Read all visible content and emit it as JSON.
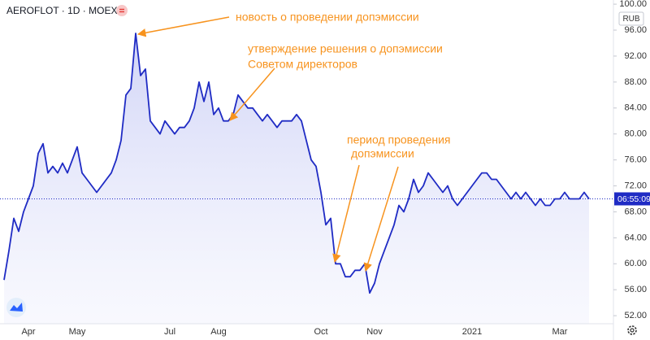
{
  "chart_data": {
    "type": "line",
    "title": "AEROFLOT · 1D · MOEX",
    "currency": "RUB",
    "last_label": "06:55:09",
    "annotations": [
      "новость о проведении допэмиссии",
      "утверждение решения о допэмиссии",
      "Советом директоров",
      "период проведения",
      "допэмиссии"
    ],
    "categories": [
      null,
      null,
      null,
      null,
      null,
      "Apr",
      null,
      null,
      null,
      null,
      null,
      null,
      null,
      null,
      null,
      "May",
      null,
      null,
      null,
      null,
      null,
      null,
      null,
      null,
      null,
      null,
      null,
      null,
      null,
      null,
      null,
      null,
      null,
      null,
      "Jul",
      null,
      null,
      null,
      null,
      null,
      null,
      null,
      null,
      null,
      "Aug",
      null,
      null,
      null,
      null,
      null,
      null,
      null,
      null,
      null,
      null,
      null,
      null,
      null,
      null,
      null,
      null,
      null,
      null,
      null,
      null,
      "Oct",
      null,
      null,
      null,
      null,
      null,
      null,
      null,
      null,
      null,
      null,
      "Nov",
      null,
      null,
      null,
      null,
      null,
      null,
      null,
      null,
      null,
      null,
      null,
      null,
      null,
      null,
      null,
      null,
      null,
      null,
      null,
      "2021",
      null,
      null,
      null,
      null,
      null,
      null,
      null,
      null,
      null,
      null,
      null,
      null,
      null,
      null,
      null,
      null,
      null,
      "Mar",
      null,
      null,
      null,
      null,
      null,
      null
    ],
    "series": [
      {
        "name": "AEROFLOT",
        "color": "#1f2bc4",
        "values": [
          57.5,
          62,
          67,
          65,
          68,
          70,
          72,
          77,
          78.5,
          74,
          75,
          74,
          75.5,
          74,
          76,
          78,
          74,
          73,
          72,
          71,
          72,
          73,
          74,
          76,
          79,
          86,
          87,
          95.5,
          89,
          90,
          82,
          81,
          80,
          82,
          81,
          80,
          81,
          81,
          82,
          84,
          88,
          85,
          88,
          83,
          84,
          82,
          82,
          83,
          86,
          85,
          84,
          84,
          83,
          82,
          83,
          82,
          81,
          82,
          82,
          82,
          83,
          82,
          79,
          76,
          75,
          71,
          66,
          67,
          60,
          60,
          58,
          58,
          59,
          59,
          60,
          55.5,
          57,
          60,
          62,
          64,
          66,
          69,
          68,
          70,
          73,
          71,
          72,
          74,
          73,
          72,
          71,
          72,
          70,
          69,
          70,
          71,
          72,
          73,
          74,
          74,
          73,
          73,
          72,
          71,
          70,
          71,
          70,
          71,
          70,
          69,
          70,
          69,
          69,
          70,
          70,
          71,
          70,
          70,
          70,
          71,
          70
        ]
      }
    ],
    "ylim": [
      50.76,
      100.64
    ],
    "yticks": [
      {
        "value": 52,
        "label": "52.00"
      },
      {
        "value": 56,
        "label": "56.00"
      },
      {
        "value": 60,
        "label": "60.00"
      },
      {
        "value": 64,
        "label": "64.00"
      },
      {
        "value": 68,
        "label": "68.00"
      },
      {
        "value": 72,
        "label": "72.00"
      },
      {
        "value": 76,
        "label": "76.00"
      },
      {
        "value": 80,
        "label": "80.00"
      },
      {
        "value": 84,
        "label": "84.00"
      },
      {
        "value": 88,
        "label": "88.00"
      },
      {
        "value": 92,
        "label": "92.00"
      },
      {
        "value": 96,
        "label": "96.00"
      },
      {
        "value": 100,
        "label": "100.00"
      }
    ]
  }
}
